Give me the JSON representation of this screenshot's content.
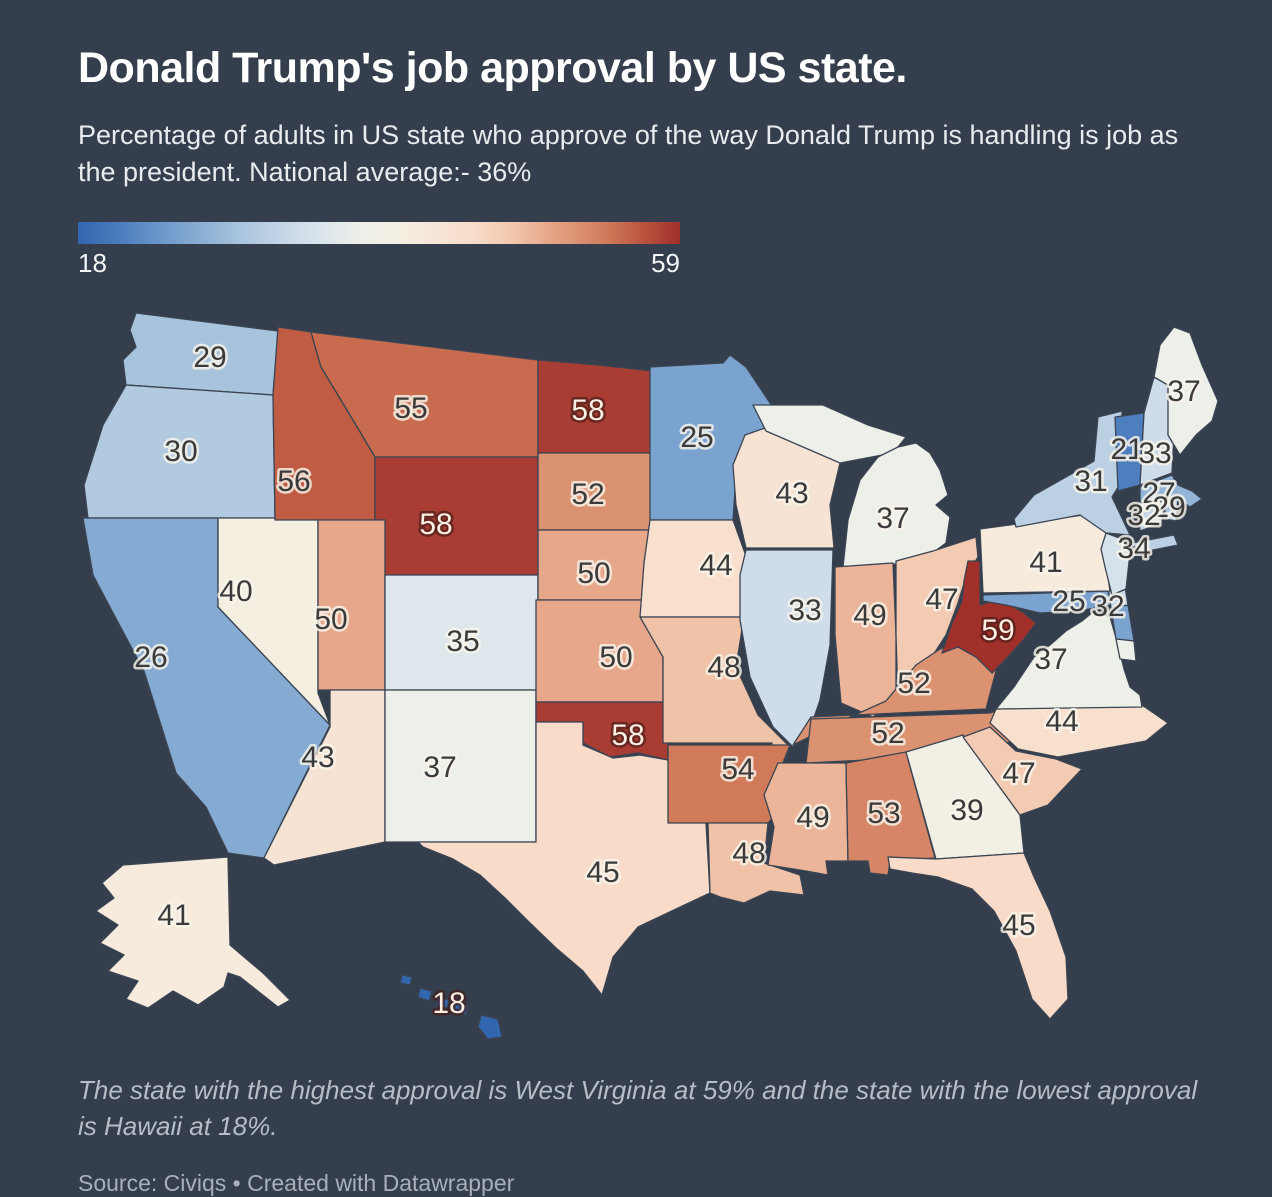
{
  "header": {
    "title": "Donald Trump's job approval by US state.",
    "subtitle": "Percentage of adults in US state who approve of the way Donald Trump is handling is job as the president. National average:- 36%"
  },
  "legend": {
    "min_label": "18",
    "max_label": "59",
    "min": 18,
    "max": 59
  },
  "colors": {
    "background": "#343e4d",
    "state_border": "#3a4452",
    "scale_stops": [
      {
        "v": 18,
        "c": "#3266ae"
      },
      {
        "v": 21,
        "c": "#4d7fbe"
      },
      {
        "v": 25,
        "c": "#7ba3cf"
      },
      {
        "v": 29,
        "c": "#a8c4dd"
      },
      {
        "v": 33,
        "c": "#cfdcea"
      },
      {
        "v": 35,
        "c": "#dde7ec"
      },
      {
        "v": 37,
        "c": "#edefe9"
      },
      {
        "v": 40,
        "c": "#f5efe2"
      },
      {
        "v": 43,
        "c": "#f7e3d4"
      },
      {
        "v": 45,
        "c": "#f8dcc9"
      },
      {
        "v": 48,
        "c": "#f0c3a8"
      },
      {
        "v": 50,
        "c": "#e7a78b"
      },
      {
        "v": 52,
        "c": "#db9271"
      },
      {
        "v": 54,
        "c": "#d07a5a"
      },
      {
        "v": 56,
        "c": "#c05c43"
      },
      {
        "v": 58,
        "c": "#aa3d33"
      },
      {
        "v": 59,
        "c": "#a2302a"
      }
    ]
  },
  "chart_data": {
    "type": "choropleth-map",
    "title": "Donald Trump's job approval by US state.",
    "unit": "% approval",
    "national_average": 36,
    "range": [
      18,
      59
    ],
    "highest": {
      "state": "West Virginia",
      "value": 59
    },
    "lowest": {
      "state": "Hawaii",
      "value": 18
    },
    "states": [
      {
        "abbr": "WA",
        "name": "Washington",
        "value": 29
      },
      {
        "abbr": "OR",
        "name": "Oregon",
        "value": 30
      },
      {
        "abbr": "CA",
        "name": "California",
        "value": 26
      },
      {
        "abbr": "NV",
        "name": "Nevada",
        "value": 40
      },
      {
        "abbr": "ID",
        "name": "Idaho",
        "value": 56
      },
      {
        "abbr": "MT",
        "name": "Montana",
        "value": 55
      },
      {
        "abbr": "WY",
        "name": "Wyoming",
        "value": 58
      },
      {
        "abbr": "UT",
        "name": "Utah",
        "value": 50
      },
      {
        "abbr": "CO",
        "name": "Colorado",
        "value": 35
      },
      {
        "abbr": "AZ",
        "name": "Arizona",
        "value": 43
      },
      {
        "abbr": "NM",
        "name": "New Mexico",
        "value": 37
      },
      {
        "abbr": "ND",
        "name": "North Dakota",
        "value": 58
      },
      {
        "abbr": "SD",
        "name": "South Dakota",
        "value": 52
      },
      {
        "abbr": "NE",
        "name": "Nebraska",
        "value": 50
      },
      {
        "abbr": "KS",
        "name": "Kansas",
        "value": 50
      },
      {
        "abbr": "OK",
        "name": "Oklahoma",
        "value": 58
      },
      {
        "abbr": "TX",
        "name": "Texas",
        "value": 45
      },
      {
        "abbr": "MN",
        "name": "Minnesota",
        "value": 25
      },
      {
        "abbr": "IA",
        "name": "Iowa",
        "value": 44
      },
      {
        "abbr": "MO",
        "name": "Missouri",
        "value": 48
      },
      {
        "abbr": "AR",
        "name": "Arkansas",
        "value": 54
      },
      {
        "abbr": "LA",
        "name": "Louisiana",
        "value": 48
      },
      {
        "abbr": "WI",
        "name": "Wisconsin",
        "value": 43
      },
      {
        "abbr": "IL",
        "name": "Illinois",
        "value": 33
      },
      {
        "abbr": "MI",
        "name": "Michigan",
        "value": 37
      },
      {
        "abbr": "IN",
        "name": "Indiana",
        "value": 49
      },
      {
        "abbr": "OH",
        "name": "Ohio",
        "value": 47
      },
      {
        "abbr": "KY",
        "name": "Kentucky",
        "value": 52
      },
      {
        "abbr": "TN",
        "name": "Tennessee",
        "value": 52
      },
      {
        "abbr": "MS",
        "name": "Mississippi",
        "value": 49
      },
      {
        "abbr": "AL",
        "name": "Alabama",
        "value": 53
      },
      {
        "abbr": "GA",
        "name": "Georgia",
        "value": 39
      },
      {
        "abbr": "FL",
        "name": "Florida",
        "value": 45
      },
      {
        "abbr": "SC",
        "name": "South Carolina",
        "value": 47
      },
      {
        "abbr": "NC",
        "name": "North Carolina",
        "value": 44
      },
      {
        "abbr": "VA",
        "name": "Virginia",
        "value": 37
      },
      {
        "abbr": "WV",
        "name": "West Virginia",
        "value": 59
      },
      {
        "abbr": "MD",
        "name": "Maryland",
        "value": 25
      },
      {
        "abbr": "DE",
        "name": "Delaware",
        "value": 32
      },
      {
        "abbr": "PA",
        "name": "Pennsylvania",
        "value": 41
      },
      {
        "abbr": "NJ",
        "name": "New Jersey",
        "value": 34
      },
      {
        "abbr": "NY",
        "name": "New York",
        "value": 31
      },
      {
        "abbr": "CT",
        "name": "Connecticut",
        "value": 32
      },
      {
        "abbr": "RI",
        "name": "Rhode Island",
        "value": 29
      },
      {
        "abbr": "MA",
        "name": "Massachusetts",
        "value": 27
      },
      {
        "abbr": "VT",
        "name": "Vermont",
        "value": 21
      },
      {
        "abbr": "NH",
        "name": "New Hampshire",
        "value": 33
      },
      {
        "abbr": "ME",
        "name": "Maine",
        "value": 37
      },
      {
        "abbr": "AK",
        "name": "Alaska",
        "value": 41
      },
      {
        "abbr": "HI",
        "name": "Hawaii",
        "value": 18
      }
    ]
  },
  "footnote": "The state with the highest approval is West Virginia at 59% and the state with the lowest approval is Hawaii at 18%.",
  "source": "Source: Civiqs • Created with Datawrapper"
}
